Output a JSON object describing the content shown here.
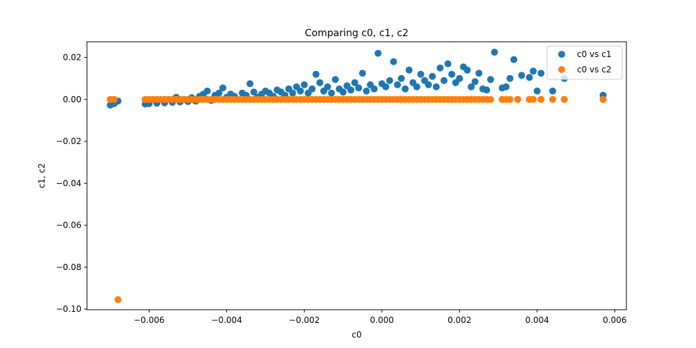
{
  "chart_data": {
    "type": "scatter",
    "title": "Comparing c0, c1, c2",
    "xlabel": "c0",
    "ylabel": "c1, c2",
    "xlim": [
      -0.0076,
      0.0063
    ],
    "ylim": [
      -0.1003,
      0.0275
    ],
    "xticks": [
      -0.006,
      -0.004,
      -0.002,
      0.0,
      0.002,
      0.004,
      0.006
    ],
    "xtick_labels": [
      "−0.006",
      "−0.004",
      "−0.002",
      "0.000",
      "0.002",
      "0.004",
      "0.006"
    ],
    "yticks": [
      0.02,
      0.0,
      -0.02,
      -0.04,
      -0.06,
      -0.08,
      -0.1
    ],
    "ytick_labels": [
      "0.02",
      "0.00",
      "−0.02",
      "−0.04",
      "−0.06",
      "−0.08",
      "−0.10"
    ],
    "grid": false,
    "legend_position": "top-right",
    "series": [
      {
        "name": "c0 vs c1",
        "color": "#1f77b4",
        "points": [
          [
            -0.007,
            -0.0027
          ],
          [
            -0.0069,
            -0.002
          ],
          [
            -0.0068,
            -0.0008
          ],
          [
            -0.0061,
            -0.0022
          ],
          [
            -0.006,
            -0.002
          ],
          [
            -0.0058,
            -0.0018
          ],
          [
            -0.0056,
            -0.0016
          ],
          [
            -0.0054,
            -0.0014
          ],
          [
            -0.0053,
            0.001
          ],
          [
            -0.0052,
            -0.0012
          ],
          [
            -0.005,
            -0.001
          ],
          [
            -0.0049,
            0.0008
          ],
          [
            -0.0048,
            -0.0008
          ],
          [
            -0.0047,
            0.0015
          ],
          [
            -0.0046,
            0.0025
          ],
          [
            -0.0045,
            0.004
          ],
          [
            -0.0044,
            -0.0005
          ],
          [
            -0.0043,
            0.002
          ],
          [
            -0.0042,
            0.003
          ],
          [
            -0.0041,
            0.0055
          ],
          [
            -0.004,
            0.001
          ],
          [
            -0.0039,
            0.0025
          ],
          [
            -0.0038,
            0.0015
          ],
          [
            -0.0036,
            0.003
          ],
          [
            -0.0035,
            0.002
          ],
          [
            -0.0034,
            0.0075
          ],
          [
            -0.0033,
            0.0035
          ],
          [
            -0.0032,
            0.001
          ],
          [
            -0.0031,
            0.0025
          ],
          [
            -0.003,
            0.004
          ],
          [
            -0.0029,
            0.003
          ],
          [
            -0.0028,
            0.0015
          ],
          [
            -0.0027,
            0.0045
          ],
          [
            -0.0026,
            0.0035
          ],
          [
            -0.0025,
            0.002
          ],
          [
            -0.0024,
            0.005
          ],
          [
            -0.0023,
            0.003
          ],
          [
            -0.0022,
            0.006
          ],
          [
            -0.0021,
            0.004
          ],
          [
            -0.002,
            0.007
          ],
          [
            -0.0019,
            0.003
          ],
          [
            -0.0018,
            0.005
          ],
          [
            -0.0017,
            0.012
          ],
          [
            -0.0016,
            0.008
          ],
          [
            -0.0015,
            0.004
          ],
          [
            -0.0014,
            0.006
          ],
          [
            -0.0013,
            0.003
          ],
          [
            -0.0012,
            0.0095
          ],
          [
            -0.0011,
            0.005
          ],
          [
            -0.001,
            0.0035
          ],
          [
            -0.0009,
            0.0065
          ],
          [
            -0.0008,
            0.0045
          ],
          [
            -0.0007,
            0.008
          ],
          [
            -0.0006,
            0.0055
          ],
          [
            -0.0005,
            0.0125
          ],
          [
            -0.0004,
            0.004
          ],
          [
            -0.0003,
            0.007
          ],
          [
            -0.0002,
            0.005
          ],
          [
            -0.0001,
            0.022
          ],
          [
            0.0,
            0.0075
          ],
          [
            0.0001,
            0.006
          ],
          [
            0.0002,
            0.009
          ],
          [
            0.0003,
            0.018
          ],
          [
            0.0004,
            0.007
          ],
          [
            0.0005,
            0.01
          ],
          [
            0.0006,
            0.005
          ],
          [
            0.0007,
            0.014
          ],
          [
            0.0008,
            0.008
          ],
          [
            0.0009,
            0.006
          ],
          [
            0.001,
            0.012
          ],
          [
            0.0011,
            0.009
          ],
          [
            0.0012,
            0.007
          ],
          [
            0.0013,
            0.011
          ],
          [
            0.0014,
            0.006
          ],
          [
            0.0015,
            0.015
          ],
          [
            0.0016,
            0.009
          ],
          [
            0.0017,
            0.017
          ],
          [
            0.0018,
            0.012
          ],
          [
            0.0019,
            0.008
          ],
          [
            0.002,
            0.01
          ],
          [
            0.0021,
            0.0155
          ],
          [
            0.0022,
            0.014
          ],
          [
            0.0023,
            0.006
          ],
          [
            0.0024,
            0.0085
          ],
          [
            0.0025,
            0.0125
          ],
          [
            0.0026,
            0.005
          ],
          [
            0.0027,
            0.0045
          ],
          [
            0.0028,
            0.0095
          ],
          [
            0.0029,
            0.0225
          ],
          [
            0.0031,
            0.0055
          ],
          [
            0.0032,
            0.006
          ],
          [
            0.0033,
            0.01
          ],
          [
            0.0034,
            0.019
          ],
          [
            0.0036,
            0.0115
          ],
          [
            0.0038,
            0.0105
          ],
          [
            0.0039,
            0.0135
          ],
          [
            0.004,
            0.004
          ],
          [
            0.0041,
            0.0125
          ],
          [
            0.0044,
            0.004
          ],
          [
            0.0047,
            0.01
          ],
          [
            0.0057,
            0.002
          ]
        ]
      },
      {
        "name": "c0 vs c2",
        "color": "#ff7f0e",
        "points": [
          [
            -0.007,
            0.0
          ],
          [
            -0.0069,
            0.0
          ],
          [
            -0.0068,
            -0.0955
          ],
          [
            -0.0061,
            0.0
          ],
          [
            -0.006,
            0.0
          ],
          [
            -0.0059,
            0.0
          ],
          [
            -0.0058,
            0.0
          ],
          [
            -0.0057,
            0.0
          ],
          [
            -0.0056,
            0.0
          ],
          [
            -0.0055,
            0.0
          ],
          [
            -0.0054,
            0.0
          ],
          [
            -0.0053,
            0.0
          ],
          [
            -0.0052,
            0.0
          ],
          [
            -0.0051,
            0.0
          ],
          [
            -0.005,
            0.0
          ],
          [
            -0.0049,
            0.0
          ],
          [
            -0.0048,
            0.0
          ],
          [
            -0.0047,
            0.0
          ],
          [
            -0.0046,
            0.0
          ],
          [
            -0.0045,
            0.0
          ],
          [
            -0.0044,
            0.0
          ],
          [
            -0.0043,
            0.0
          ],
          [
            -0.0042,
            0.0
          ],
          [
            -0.0041,
            0.0
          ],
          [
            -0.004,
            0.0
          ],
          [
            -0.0039,
            0.0
          ],
          [
            -0.0038,
            0.0
          ],
          [
            -0.0037,
            0.0
          ],
          [
            -0.0036,
            0.0
          ],
          [
            -0.0035,
            0.0
          ],
          [
            -0.0034,
            0.0
          ],
          [
            -0.0033,
            0.0
          ],
          [
            -0.0032,
            0.0
          ],
          [
            -0.0031,
            0.0
          ],
          [
            -0.003,
            0.0
          ],
          [
            -0.0029,
            0.0
          ],
          [
            -0.0028,
            0.0
          ],
          [
            -0.0027,
            0.0
          ],
          [
            -0.0026,
            0.0
          ],
          [
            -0.0025,
            0.0
          ],
          [
            -0.0024,
            0.0
          ],
          [
            -0.0023,
            0.0
          ],
          [
            -0.0022,
            0.0
          ],
          [
            -0.0021,
            0.0
          ],
          [
            -0.002,
            0.0
          ],
          [
            -0.0019,
            0.0
          ],
          [
            -0.0018,
            0.0
          ],
          [
            -0.0017,
            0.0
          ],
          [
            -0.0016,
            0.0
          ],
          [
            -0.0015,
            0.0
          ],
          [
            -0.0014,
            0.0
          ],
          [
            -0.0013,
            0.0
          ],
          [
            -0.0012,
            0.0
          ],
          [
            -0.0011,
            0.0
          ],
          [
            -0.001,
            0.0
          ],
          [
            -0.0009,
            0.0
          ],
          [
            -0.0008,
            0.0
          ],
          [
            -0.0007,
            0.0
          ],
          [
            -0.0006,
            0.0
          ],
          [
            -0.0005,
            0.0
          ],
          [
            -0.0004,
            0.0
          ],
          [
            -0.0003,
            0.0
          ],
          [
            -0.0002,
            0.0
          ],
          [
            -0.0001,
            0.0
          ],
          [
            0.0,
            0.0
          ],
          [
            0.0001,
            0.0
          ],
          [
            0.0002,
            0.0
          ],
          [
            0.0003,
            0.0
          ],
          [
            0.0004,
            0.0
          ],
          [
            0.0005,
            0.0
          ],
          [
            0.0006,
            0.0
          ],
          [
            0.0007,
            0.0
          ],
          [
            0.0008,
            0.0
          ],
          [
            0.0009,
            0.0
          ],
          [
            0.001,
            0.0
          ],
          [
            0.0011,
            0.0
          ],
          [
            0.0012,
            0.0
          ],
          [
            0.0013,
            0.0
          ],
          [
            0.0014,
            0.0
          ],
          [
            0.0015,
            0.0
          ],
          [
            0.0016,
            0.0
          ],
          [
            0.0017,
            0.0
          ],
          [
            0.0018,
            0.0
          ],
          [
            0.0019,
            0.0
          ],
          [
            0.002,
            0.0
          ],
          [
            0.0021,
            0.0
          ],
          [
            0.0022,
            0.0
          ],
          [
            0.0023,
            0.0
          ],
          [
            0.0024,
            0.0
          ],
          [
            0.0025,
            0.0
          ],
          [
            0.0026,
            0.0
          ],
          [
            0.0027,
            0.0
          ],
          [
            0.0028,
            0.0
          ],
          [
            0.0031,
            0.0
          ],
          [
            0.0032,
            0.0
          ],
          [
            0.0033,
            0.0
          ],
          [
            0.0035,
            0.0
          ],
          [
            0.0038,
            0.0
          ],
          [
            0.0039,
            0.0
          ],
          [
            0.0041,
            0.0
          ],
          [
            0.0044,
            0.0
          ],
          [
            0.0047,
            0.0
          ],
          [
            0.0057,
            0.0
          ]
        ]
      }
    ]
  }
}
